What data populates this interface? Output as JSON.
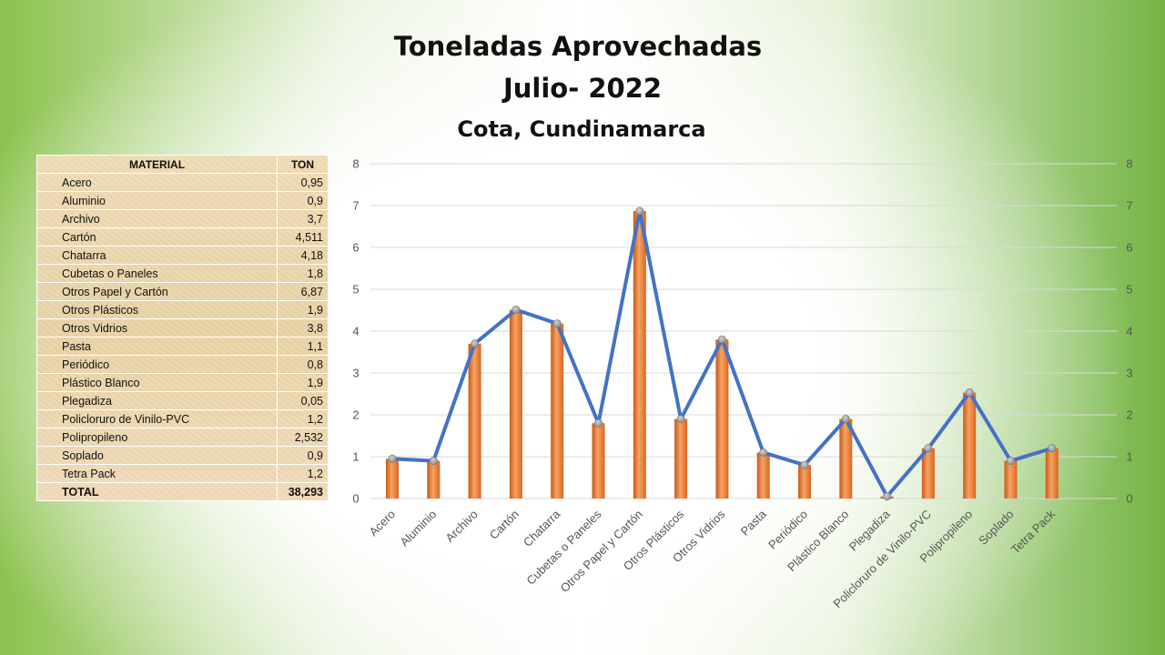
{
  "chart_data": {
    "type": "bar+line",
    "title": "Toneladas Aprovechadas",
    "subtitle": "Julio- 2022",
    "location": "Cota, Cundinamarca",
    "categories": [
      "Acero",
      "Aluminio",
      "Archivo",
      "Cartón",
      "Chatarra",
      "Cubetas o Paneles",
      "Otros Papel y Cartón",
      "Otros Plásticos",
      "Otros Vidrios",
      "Pasta",
      "Periódico",
      "Plástico Blanco",
      "Plegadiza",
      "Policloruro de Vinilo-PVC",
      "Polipropileno",
      "Soplado",
      "Tetra Pack"
    ],
    "series": [
      {
        "name": "TON (bar)",
        "type": "bar",
        "color": "#ed7d31",
        "values": [
          0.95,
          0.9,
          3.7,
          4.511,
          4.18,
          1.8,
          6.87,
          1.9,
          3.8,
          1.1,
          0.8,
          1.9,
          0.05,
          1.2,
          2.532,
          0.9,
          1.2
        ]
      },
      {
        "name": "TON (line)",
        "type": "line",
        "color": "#4472c4",
        "values": [
          0.95,
          0.9,
          3.7,
          4.511,
          4.18,
          1.8,
          6.87,
          1.9,
          3.8,
          1.1,
          0.8,
          1.9,
          0.05,
          1.2,
          2.532,
          0.9,
          1.2
        ]
      }
    ],
    "ylim": [
      0,
      8
    ],
    "yticks": [
      "0",
      "1",
      "2",
      "3",
      "4",
      "5",
      "6",
      "7",
      "8"
    ],
    "grid": true,
    "secondary_axis": true
  },
  "table": {
    "headers": {
      "material": "MATERIAL",
      "ton": "TON"
    },
    "rows": [
      {
        "material": "Acero",
        "ton": "0,95"
      },
      {
        "material": "Aluminio",
        "ton": "0,9"
      },
      {
        "material": "Archivo",
        "ton": "3,7"
      },
      {
        "material": "Cartón",
        "ton": "4,511"
      },
      {
        "material": "Chatarra",
        "ton": "4,18"
      },
      {
        "material": "Cubetas o Paneles",
        "ton": "1,8"
      },
      {
        "material": "Otros Papel y Cartón",
        "ton": "6,87"
      },
      {
        "material": "Otros Plásticos",
        "ton": "1,9"
      },
      {
        "material": "Otros Vidrios",
        "ton": "3,8"
      },
      {
        "material": "Pasta",
        "ton": "1,1"
      },
      {
        "material": "Periódico",
        "ton": "0,8"
      },
      {
        "material": "Plástico Blanco",
        "ton": "1,9"
      },
      {
        "material": "Plegadiza",
        "ton": "0,05"
      },
      {
        "material": "Policloruro de Vinilo-PVC",
        "ton": "1,2"
      },
      {
        "material": "Polipropileno",
        "ton": "2,532"
      },
      {
        "material": "Soplado",
        "ton": "0,9"
      },
      {
        "material": "Tetra Pack",
        "ton": "1,2"
      }
    ],
    "total": {
      "material": "TOTAL",
      "ton": "38,293"
    }
  }
}
